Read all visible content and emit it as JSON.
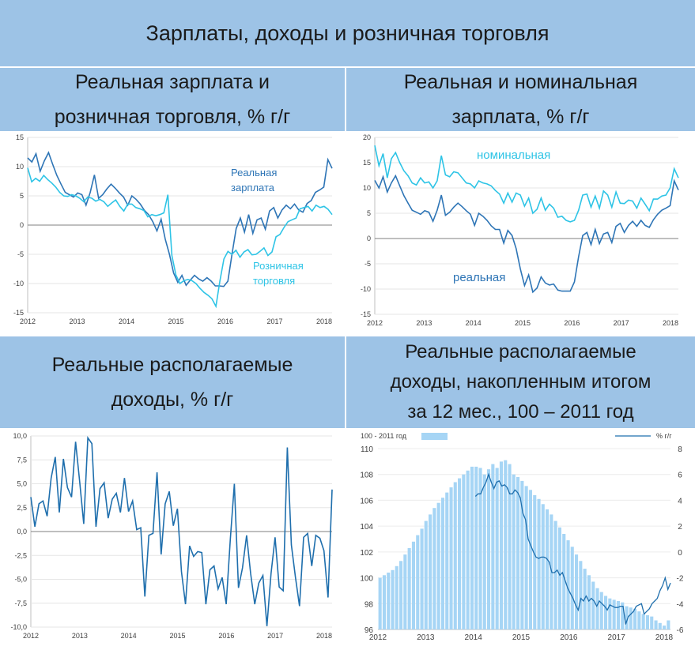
{
  "page": {
    "title": "Зарплаты, доходы и розничная торговля",
    "panel_titles": {
      "p1": [
        "Реальная зарплата и",
        "розничная торговля, % г/г"
      ],
      "p2": [
        "Реальная и номинальная",
        "зарплата, % г/г"
      ],
      "p3": [
        "Реальные располагаемые",
        "доходы, % г/г"
      ],
      "p4": [
        "Реальные располагаемые",
        "доходы, накопленным итогом",
        "за 12 мес., 100 – 2011 год"
      ]
    }
  },
  "chart_data": [
    {
      "type": "line",
      "id": "p1",
      "x_labels": [
        "2012",
        "2013",
        "2014",
        "2015",
        "2016",
        "2017",
        "2018"
      ],
      "yticks": [
        "15",
        "10",
        "5",
        "0",
        "-5",
        "-10",
        "-15"
      ],
      "ylim": [
        -15,
        15
      ],
      "colors": [
        "#2e75b6",
        "#2ec4e6"
      ],
      "annotations": [
        {
          "lines": [
            "Реальная",
            "зарплата"
          ],
          "color": "#2e75b6"
        },
        {
          "lines": [
            "Розничная",
            "торговля"
          ],
          "color": "#2ec4e6"
        }
      ],
      "series": [
        {
          "values": [
            11.5,
            10.8,
            12.2,
            9.2,
            11.0,
            12.4,
            10.4,
            8.5,
            7.0,
            5.6,
            5.2,
            4.8,
            5.5,
            5.2,
            3.4,
            5.6,
            8.6,
            4.6,
            5.2,
            6.2,
            7.0,
            6.3,
            5.5,
            4.8,
            3.4,
            5.0,
            4.4,
            3.6,
            2.5,
            1.8,
            0.6,
            -1.0,
            1.0,
            -2.4,
            -5.0,
            -8.2,
            -9.8,
            -8.6,
            -10.3,
            -9.4,
            -8.6,
            -9.2,
            -9.6,
            -9.0,
            -9.6,
            -10.4,
            -10.4,
            -10.5,
            -9.6,
            -5.0,
            -0.6,
            1.2,
            -1.2,
            1.8,
            -1.4,
            0.9,
            1.2,
            -0.7,
            2.4,
            3.0,
            1.2,
            2.6,
            3.4,
            2.8,
            3.6,
            2.6,
            2.2,
            3.7,
            4.2,
            5.6,
            6.0,
            6.5,
            11.2,
            9.7
          ]
        },
        {
          "values": [
            9.8,
            7.4,
            8.0,
            7.5,
            8.5,
            7.8,
            7.2,
            6.5,
            5.6,
            5.0,
            4.9,
            5.2,
            5.0,
            4.6,
            4.0,
            4.8,
            4.6,
            4.1,
            4.4,
            4.0,
            3.2,
            3.8,
            4.3,
            3.2,
            2.4,
            3.6,
            3.6,
            3.0,
            2.8,
            2.5,
            1.4,
            1.8,
            1.6,
            1.8,
            2.1,
            5.2,
            -5.2,
            -8.5,
            -10.0,
            -9.5,
            -9.3,
            -9.5,
            -10.0,
            -10.8,
            -11.5,
            -12.0,
            -12.6,
            -13.9,
            -9.5,
            -5.8,
            -4.5,
            -5.0,
            -4.3,
            -5.5,
            -4.6,
            -4.2,
            -5.1,
            -5.0,
            -4.5,
            -3.9,
            -5.2,
            -4.6,
            -2.0,
            -1.6,
            -0.4,
            0.6,
            0.9,
            1.2,
            2.8,
            3.0,
            3.2,
            2.4,
            3.4,
            3.0,
            3.2,
            2.7,
            1.8
          ]
        }
      ]
    },
    {
      "type": "line",
      "id": "p2",
      "x_labels": [
        "2012",
        "2013",
        "2014",
        "2015",
        "2016",
        "2017",
        "2018"
      ],
      "yticks": [
        "20",
        "15",
        "10",
        "5",
        "0",
        "-5",
        "-10",
        "-15"
      ],
      "ylim": [
        -15,
        20
      ],
      "colors": [
        "#2ec4e6",
        "#2e75b6"
      ],
      "annotations": [
        {
          "lines": [
            "номинальная"
          ],
          "color": "#2ec4e6"
        },
        {
          "lines": [
            "реальная"
          ],
          "color": "#2e75b6"
        }
      ],
      "series": [
        {
          "values": [
            18.4,
            14.4,
            16.8,
            12.0,
            15.8,
            17.0,
            15.0,
            13.4,
            12.4,
            11.0,
            10.6,
            12.0,
            11.0,
            11.2,
            10.0,
            11.4,
            16.4,
            12.6,
            12.2,
            13.2,
            13.0,
            12.0,
            11.0,
            10.8,
            10.0,
            11.4,
            11.0,
            10.8,
            10.4,
            9.5,
            8.8,
            7.0,
            9.0,
            7.2,
            9.0,
            8.6,
            6.4,
            8.0,
            5.0,
            5.8,
            8.0,
            5.6,
            6.8,
            6.0,
            4.2,
            4.4,
            3.6,
            3.3,
            3.6,
            5.6,
            8.6,
            8.8,
            6.2,
            8.4,
            6.0,
            9.4,
            8.6,
            6.2,
            9.2,
            7.0,
            6.9,
            7.6,
            7.4,
            6.0,
            8.0,
            6.8,
            5.5,
            7.8,
            7.8,
            8.4,
            8.6,
            10.0,
            13.8,
            12.0
          ]
        },
        {
          "values": [
            11.5,
            10.0,
            12.2,
            9.2,
            11.0,
            12.4,
            10.4,
            8.5,
            7.0,
            5.6,
            5.2,
            4.8,
            5.5,
            5.2,
            3.4,
            5.6,
            8.6,
            4.6,
            5.2,
            6.2,
            7.0,
            6.3,
            5.5,
            4.8,
            2.6,
            5.0,
            4.4,
            3.6,
            2.5,
            1.8,
            1.8,
            -0.9,
            1.6,
            0.6,
            -2.0,
            -6.0,
            -9.3,
            -7.2,
            -10.6,
            -9.8,
            -7.6,
            -8.8,
            -9.2,
            -9.0,
            -10.2,
            -10.4,
            -10.4,
            -10.4,
            -8.6,
            -3.6,
            0.6,
            1.2,
            -1.2,
            1.8,
            -1.0,
            0.9,
            1.2,
            -0.8,
            2.4,
            3.0,
            1.2,
            2.6,
            3.4,
            2.4,
            3.6,
            2.6,
            2.2,
            3.7,
            4.8,
            5.6,
            6.0,
            6.5,
            11.4,
            9.6
          ]
        }
      ]
    },
    {
      "type": "line",
      "id": "p3",
      "x_labels": [
        "2012",
        "2013",
        "2014",
        "2015",
        "2016",
        "2017",
        "2018"
      ],
      "yticks": [
        "10,0",
        "7,5",
        "5,0",
        "2,5",
        "0,0",
        "-2,5",
        "-5,0",
        "-7,5",
        "-10,0"
      ],
      "ylim": [
        -10,
        10
      ],
      "colors": [
        "#1f6fad"
      ],
      "series": [
        {
          "values": [
            3.6,
            0.5,
            2.9,
            3.2,
            1.6,
            5.6,
            7.8,
            2.0,
            7.6,
            4.6,
            3.6,
            9.4,
            5.2,
            0.8,
            9.8,
            9.2,
            0.5,
            4.5,
            5.1,
            1.4,
            3.4,
            4.0,
            2.0,
            5.6,
            2.1,
            3.2,
            0.2,
            0.4,
            -6.8,
            -0.4,
            -0.2,
            6.2,
            -2.4,
            2.9,
            4.2,
            0.6,
            2.4,
            -4.2,
            -7.6,
            -1.5,
            -2.6,
            -2.1,
            -2.2,
            -7.6,
            -4.0,
            -3.6,
            -6.0,
            -4.8,
            -7.6,
            -0.8,
            5.0,
            -5.9,
            -3.8,
            -0.4,
            -4.4,
            -7.6,
            -5.4,
            -4.6,
            -9.9,
            -4.4,
            -0.6,
            -5.8,
            -6.2,
            8.8,
            -1.4,
            -4.8,
            -7.8,
            -0.6,
            -0.2,
            -3.6,
            -0.4,
            -0.7,
            -2.0,
            -6.9,
            4.4
          ]
        }
      ]
    },
    {
      "type": "bar",
      "id": "p4",
      "x_labels": [
        "2012",
        "2013",
        "2014",
        "2015",
        "2016",
        "2017",
        "2018"
      ],
      "yticks_left": [
        "110",
        "108",
        "106",
        "104",
        "102",
        "100",
        "98",
        "96"
      ],
      "yticks_right": [
        "8",
        "6",
        "4",
        "2",
        "0",
        "-2",
        "-4",
        "-6"
      ],
      "ylim_left": [
        96,
        110
      ],
      "ylim_right": [
        -6,
        8
      ],
      "legend": {
        "bar_label": "100 - 2011 год",
        "line_label": "%  г/г",
        "position": "top"
      },
      "colors": [
        "#a6d5f5",
        "#1f6fad"
      ],
      "bars": [
        100.0,
        100.2,
        100.4,
        100.6,
        100.9,
        101.3,
        101.8,
        102.3,
        102.8,
        103.3,
        103.8,
        104.4,
        104.9,
        105.4,
        105.8,
        106.2,
        106.6,
        107.0,
        107.4,
        107.7,
        108.0,
        108.3,
        108.6,
        108.6,
        108.5,
        108.0,
        108.4,
        108.8,
        108.5,
        109.0,
        109.1,
        108.8,
        108.0,
        107.8,
        107.5,
        107.1,
        106.8,
        106.4,
        106.1,
        105.7,
        105.3,
        104.9,
        104.4,
        103.9,
        103.4,
        102.9,
        102.4,
        101.8,
        101.3,
        100.7,
        100.2,
        99.7,
        99.2,
        98.9,
        98.6,
        98.4,
        98.3,
        98.2,
        98.1,
        97.8,
        97.7,
        97.6,
        97.4,
        97.2,
        97.1,
        97.0,
        96.7,
        96.5,
        96.3,
        96.7
      ],
      "series": [
        {
          "name": "%  г/г",
          "values": [
            null,
            null,
            null,
            null,
            null,
            null,
            null,
            null,
            null,
            null,
            null,
            null,
            null,
            null,
            null,
            null,
            null,
            null,
            null,
            null,
            null,
            null,
            null,
            null,
            null,
            null,
            null,
            null,
            null,
            null,
            null,
            null,
            null,
            null,
            null,
            null,
            null,
            4.3,
            4.5,
            4.5,
            5.0,
            5.4,
            6.0,
            5.4,
            4.9,
            5.4,
            5.5,
            5.1,
            5.2,
            5.0,
            4.5,
            4.5,
            4.8,
            4.6,
            4.2,
            3.0,
            2.5,
            1.0,
            0.5,
            0.0,
            -0.4,
            -0.5,
            -0.4,
            -0.4,
            -0.5,
            -0.8,
            -1.6,
            -1.6,
            -1.4,
            -1.8,
            -1.6,
            -2.2,
            -2.8,
            -3.2,
            -3.6,
            -4.1,
            -4.5,
            -3.6,
            -3.8,
            -3.4,
            -3.8,
            -3.6,
            -3.8,
            -4.2,
            -3.8,
            -4.0,
            -4.2,
            -4.5,
            -4.1,
            -4.2,
            -4.3,
            -4.3,
            -4.2,
            -4.2,
            -5.6,
            -5.0,
            -4.8,
            -4.6,
            -4.2,
            -4.1,
            -4.0,
            -4.8,
            -4.6,
            -4.4,
            -4.0,
            -3.8,
            -3.6,
            -3.0,
            -2.6,
            -2.0,
            -2.9,
            -2.4
          ]
        }
      ]
    }
  ]
}
